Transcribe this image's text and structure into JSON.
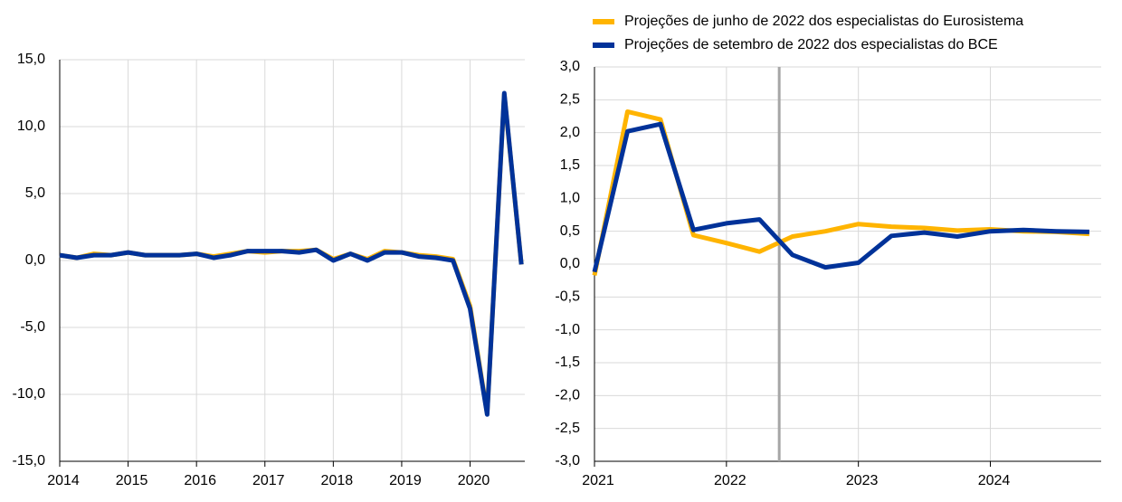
{
  "chart_data": [
    {
      "type": "line",
      "x": [
        2014,
        2014.25,
        2014.5,
        2014.75,
        2015,
        2015.25,
        2015.5,
        2015.75,
        2016,
        2016.25,
        2016.5,
        2016.75,
        2017,
        2017.25,
        2017.5,
        2017.75,
        2018,
        2018.25,
        2018.5,
        2018.75,
        2019,
        2019.25,
        2019.5,
        2019.75,
        2020,
        2020.25,
        2020.5,
        2020.75
      ],
      "series": [
        {
          "color": "#ffb400",
          "values": [
            0.4,
            0.2,
            0.5,
            0.4,
            0.6,
            0.4,
            0.4,
            0.4,
            0.5,
            0.3,
            0.5,
            0.7,
            0.6,
            0.7,
            0.7,
            0.8,
            0.1,
            0.5,
            0.1,
            0.7,
            0.6,
            0.4,
            0.3,
            0.1,
            -3.4,
            -11.4,
            12.4,
            -0.3
          ]
        },
        {
          "color": "#003299",
          "values": [
            0.4,
            0.2,
            0.4,
            0.4,
            0.6,
            0.4,
            0.4,
            0.4,
            0.5,
            0.2,
            0.4,
            0.7,
            0.7,
            0.7,
            0.6,
            0.8,
            0.0,
            0.5,
            0.0,
            0.6,
            0.6,
            0.3,
            0.2,
            0.0,
            -3.6,
            -11.5,
            12.5,
            -0.3
          ]
        }
      ],
      "xlim": [
        2014,
        2020.8
      ],
      "xticks": [
        2014,
        2015,
        2016,
        2017,
        2018,
        2019,
        2020
      ],
      "ylim": [
        -15,
        15
      ],
      "yticks": [
        {
          "value": -15,
          "label": "-15,0"
        },
        {
          "value": -10,
          "label": "-10,0"
        },
        {
          "value": -5,
          "label": "-5,0"
        },
        {
          "value": 0,
          "label": "0,0"
        },
        {
          "value": 5,
          "label": "5,0"
        },
        {
          "value": 10,
          "label": "10,0"
        },
        {
          "value": 15,
          "label": "15,0"
        }
      ],
      "grid": true
    },
    {
      "type": "line",
      "x": [
        2021,
        2021.25,
        2021.5,
        2021.75,
        2022,
        2022.25,
        2022.5,
        2022.75,
        2023,
        2023.25,
        2023.5,
        2023.75,
        2024,
        2024.25,
        2024.5,
        2024.75
      ],
      "series": [
        {
          "name": "Projeções de junho de 2022 dos especialistas do Eurosistema",
          "color": "#ffb400",
          "values": [
            -0.17,
            2.32,
            2.2,
            0.44,
            0.32,
            0.19,
            0.42,
            0.5,
            0.61,
            0.57,
            0.55,
            0.51,
            0.53,
            0.5,
            0.49,
            0.46
          ]
        },
        {
          "name": "Projeções de setembro de 2022 dos especialistas do BCE",
          "color": "#003299",
          "values": [
            -0.12,
            2.02,
            2.13,
            0.52,
            0.62,
            0.68,
            0.14,
            -0.05,
            0.02,
            0.43,
            0.48,
            0.42,
            0.5,
            0.52,
            0.5,
            0.49
          ]
        }
      ],
      "xlim": [
        2021,
        2024.84
      ],
      "xticks": [
        2021,
        2022,
        2023,
        2024
      ],
      "ylim": [
        -3,
        3
      ],
      "yticks": [
        {
          "value": -3,
          "label": "-3,0"
        },
        {
          "value": -2.5,
          "label": "-2,5"
        },
        {
          "value": -2,
          "label": "-2,0"
        },
        {
          "value": -1.5,
          "label": "-1,5"
        },
        {
          "value": -1,
          "label": "-1,0"
        },
        {
          "value": -0.5,
          "label": "-0,5"
        },
        {
          "value": 0,
          "label": "0,0"
        },
        {
          "value": 0.5,
          "label": "0,5"
        },
        {
          "value": 1,
          "label": "1,0"
        },
        {
          "value": 1.5,
          "label": "1,5"
        },
        {
          "value": 2,
          "label": "2,0"
        },
        {
          "value": 2.5,
          "label": "2,5"
        },
        {
          "value": 3,
          "label": "3,0"
        }
      ],
      "vline": 2022.4,
      "vline_color": "#a6a6a6",
      "grid": true,
      "legend": "top"
    }
  ]
}
